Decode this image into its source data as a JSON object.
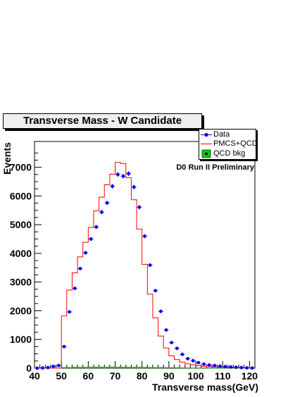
{
  "chart_data": {
    "type": "line",
    "title": "Transverse Mass - W Candidate",
    "xlabel": "Transverse mass(GeV)",
    "ylabel": "Events",
    "xlim": [
      40,
      122
    ],
    "ylim": [
      0,
      7900
    ],
    "x_ticks": [
      40,
      50,
      60,
      70,
      80,
      90,
      100,
      110,
      120
    ],
    "y_ticks": [
      0,
      1000,
      2000,
      3000,
      4000,
      5000,
      6000,
      7000
    ],
    "annotation": "D0 Run II Preliminary",
    "grid": false,
    "legend_position": "top-right",
    "bin_edges": [
      40,
      42,
      44,
      46,
      48,
      50,
      52,
      54,
      56,
      58,
      60,
      62,
      64,
      66,
      68,
      70,
      72,
      74,
      76,
      78,
      80,
      82,
      84,
      86,
      88,
      90,
      92,
      94,
      96,
      98,
      100,
      102,
      104,
      106,
      108,
      110,
      112,
      114,
      116,
      118,
      120
    ],
    "series": [
      {
        "name": "Data",
        "style": "points",
        "color": "#0000ff",
        "x": [
          41,
          43,
          45,
          47,
          49,
          51,
          53,
          55,
          57,
          59,
          61,
          63,
          65,
          67,
          69,
          71,
          73,
          75,
          77,
          79,
          81,
          83,
          85,
          87,
          89,
          91,
          93,
          95,
          97,
          99,
          101,
          103,
          105,
          107,
          109,
          111,
          113,
          115,
          117,
          119,
          121
        ],
        "values": [
          0,
          5,
          20,
          60,
          90,
          750,
          1960,
          2780,
          3470,
          4020,
          4500,
          4920,
          5440,
          5760,
          6340,
          6750,
          6690,
          6780,
          6310,
          5610,
          4600,
          3590,
          2700,
          1980,
          1330,
          890,
          690,
          480,
          330,
          260,
          190,
          140,
          110,
          90,
          70,
          55,
          40,
          30,
          20,
          10,
          5
        ]
      },
      {
        "name": "PMCS+QCD",
        "style": "step",
        "color": "#ff0000",
        "values": [
          0,
          0,
          0,
          0,
          0,
          1820,
          2720,
          3320,
          3880,
          4390,
          4900,
          5480,
          5960,
          6390,
          6760,
          7170,
          7130,
          6640,
          5870,
          4850,
          3620,
          2580,
          1750,
          1120,
          700,
          430,
          300,
          210,
          150,
          110,
          85,
          65,
          50,
          40,
          30,
          25,
          20,
          15,
          10,
          5
        ]
      },
      {
        "name": "QCD bkg",
        "style": "step",
        "color": "#00cc00",
        "values": [
          0,
          0,
          0,
          0,
          0,
          20,
          25,
          30,
          30,
          32,
          35,
          35,
          36,
          36,
          36,
          35,
          34,
          33,
          32,
          30,
          28,
          25,
          22,
          20,
          18,
          15,
          12,
          10,
          8,
          7,
          6,
          5,
          4,
          3,
          3,
          2,
          2,
          1,
          1,
          1
        ]
      }
    ]
  }
}
